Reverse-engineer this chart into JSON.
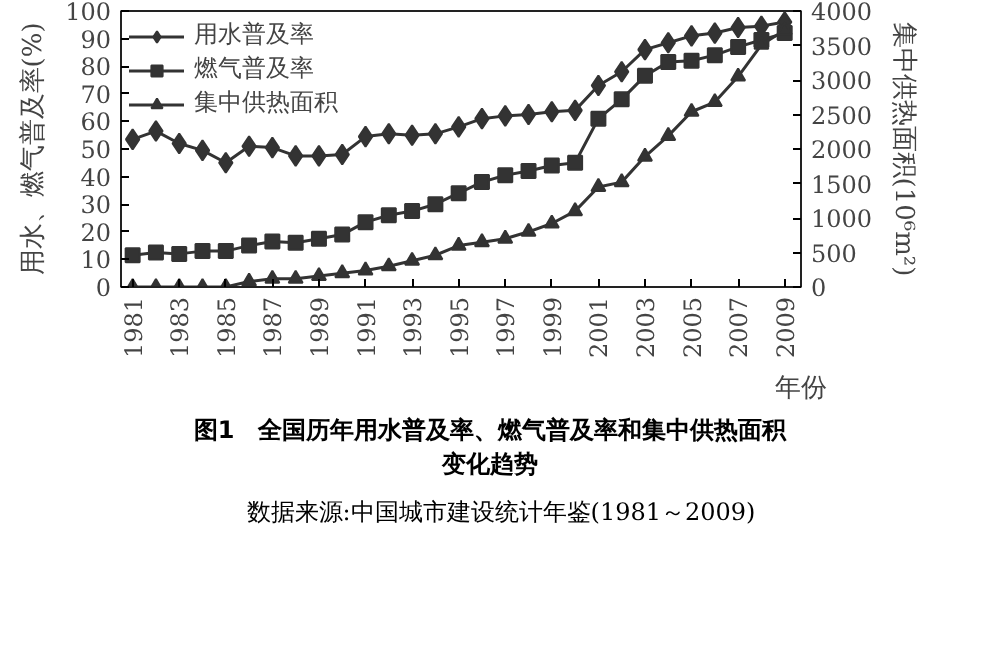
{
  "chart_data": {
    "type": "line",
    "title": "图1　全国历年用水普及率、燃气普及率和集中供热面积变化趋势",
    "xlabel": "年份",
    "ylabel": "用水、燃气普及率(%)",
    "y2label": "集中供热面积(10⁶m²)",
    "annotations": [
      "数据来源:中国城市建设统计年鉴(1981～2009)"
    ],
    "x": [
      1981,
      1982,
      1983,
      1984,
      1985,
      1986,
      1987,
      1988,
      1989,
      1990,
      1991,
      1992,
      1993,
      1994,
      1995,
      1996,
      1997,
      1998,
      1999,
      2000,
      2001,
      2002,
      2003,
      2004,
      2005,
      2006,
      2007,
      2008,
      2009
    ],
    "xlim": [
      1980.5,
      2009.7
    ],
    "xticks": [
      1981,
      1983,
      1985,
      1987,
      1989,
      1991,
      1993,
      1995,
      1997,
      1999,
      2001,
      2003,
      2005,
      2007,
      2009
    ],
    "ylim": [
      0,
      100
    ],
    "yticks": [
      0,
      10,
      20,
      30,
      40,
      50,
      60,
      70,
      80,
      90,
      100
    ],
    "y2lim": [
      0,
      4000
    ],
    "y2ticks": [
      0,
      500,
      1000,
      1500,
      2000,
      2500,
      3000,
      3500,
      4000
    ],
    "grid": false,
    "legend": "top left",
    "line_style": "solid",
    "series": [
      {
        "name": "用水普及率",
        "color": "#333333",
        "marker": "diamond",
        "values": [
          53.5,
          56.5,
          52,
          49.5,
          45,
          51,
          50.5,
          47.5,
          47.5,
          48,
          54.5,
          55.5,
          55,
          55.5,
          58,
          61,
          62,
          62.5,
          63.5,
          64,
          73,
          78,
          86,
          88.5,
          91,
          92,
          94,
          94.5,
          96
        ]
      },
      {
        "name": "燃气普及率",
        "color": "#333333",
        "marker": "square",
        "values": [
          11.5,
          12.5,
          12,
          13,
          13,
          15,
          16.5,
          16,
          17.5,
          19,
          23.5,
          26,
          27.5,
          30,
          34,
          38,
          40.5,
          42,
          44,
          45,
          61,
          68,
          76.5,
          81.5,
          82,
          84,
          87,
          89.5,
          92
        ]
      },
      {
        "name": "集中供热面积",
        "color": "#333333",
        "marker": "triangle",
        "axis": "y2",
        "values": [
          0,
          0,
          0,
          0,
          0,
          80,
          120,
          120,
          160,
          200,
          240,
          300,
          380,
          460,
          600,
          650,
          700,
          800,
          920,
          1100,
          1450,
          1520,
          1890,
          2190,
          2540,
          2680,
          3050,
          3510,
          3720
        ]
      }
    ]
  }
}
